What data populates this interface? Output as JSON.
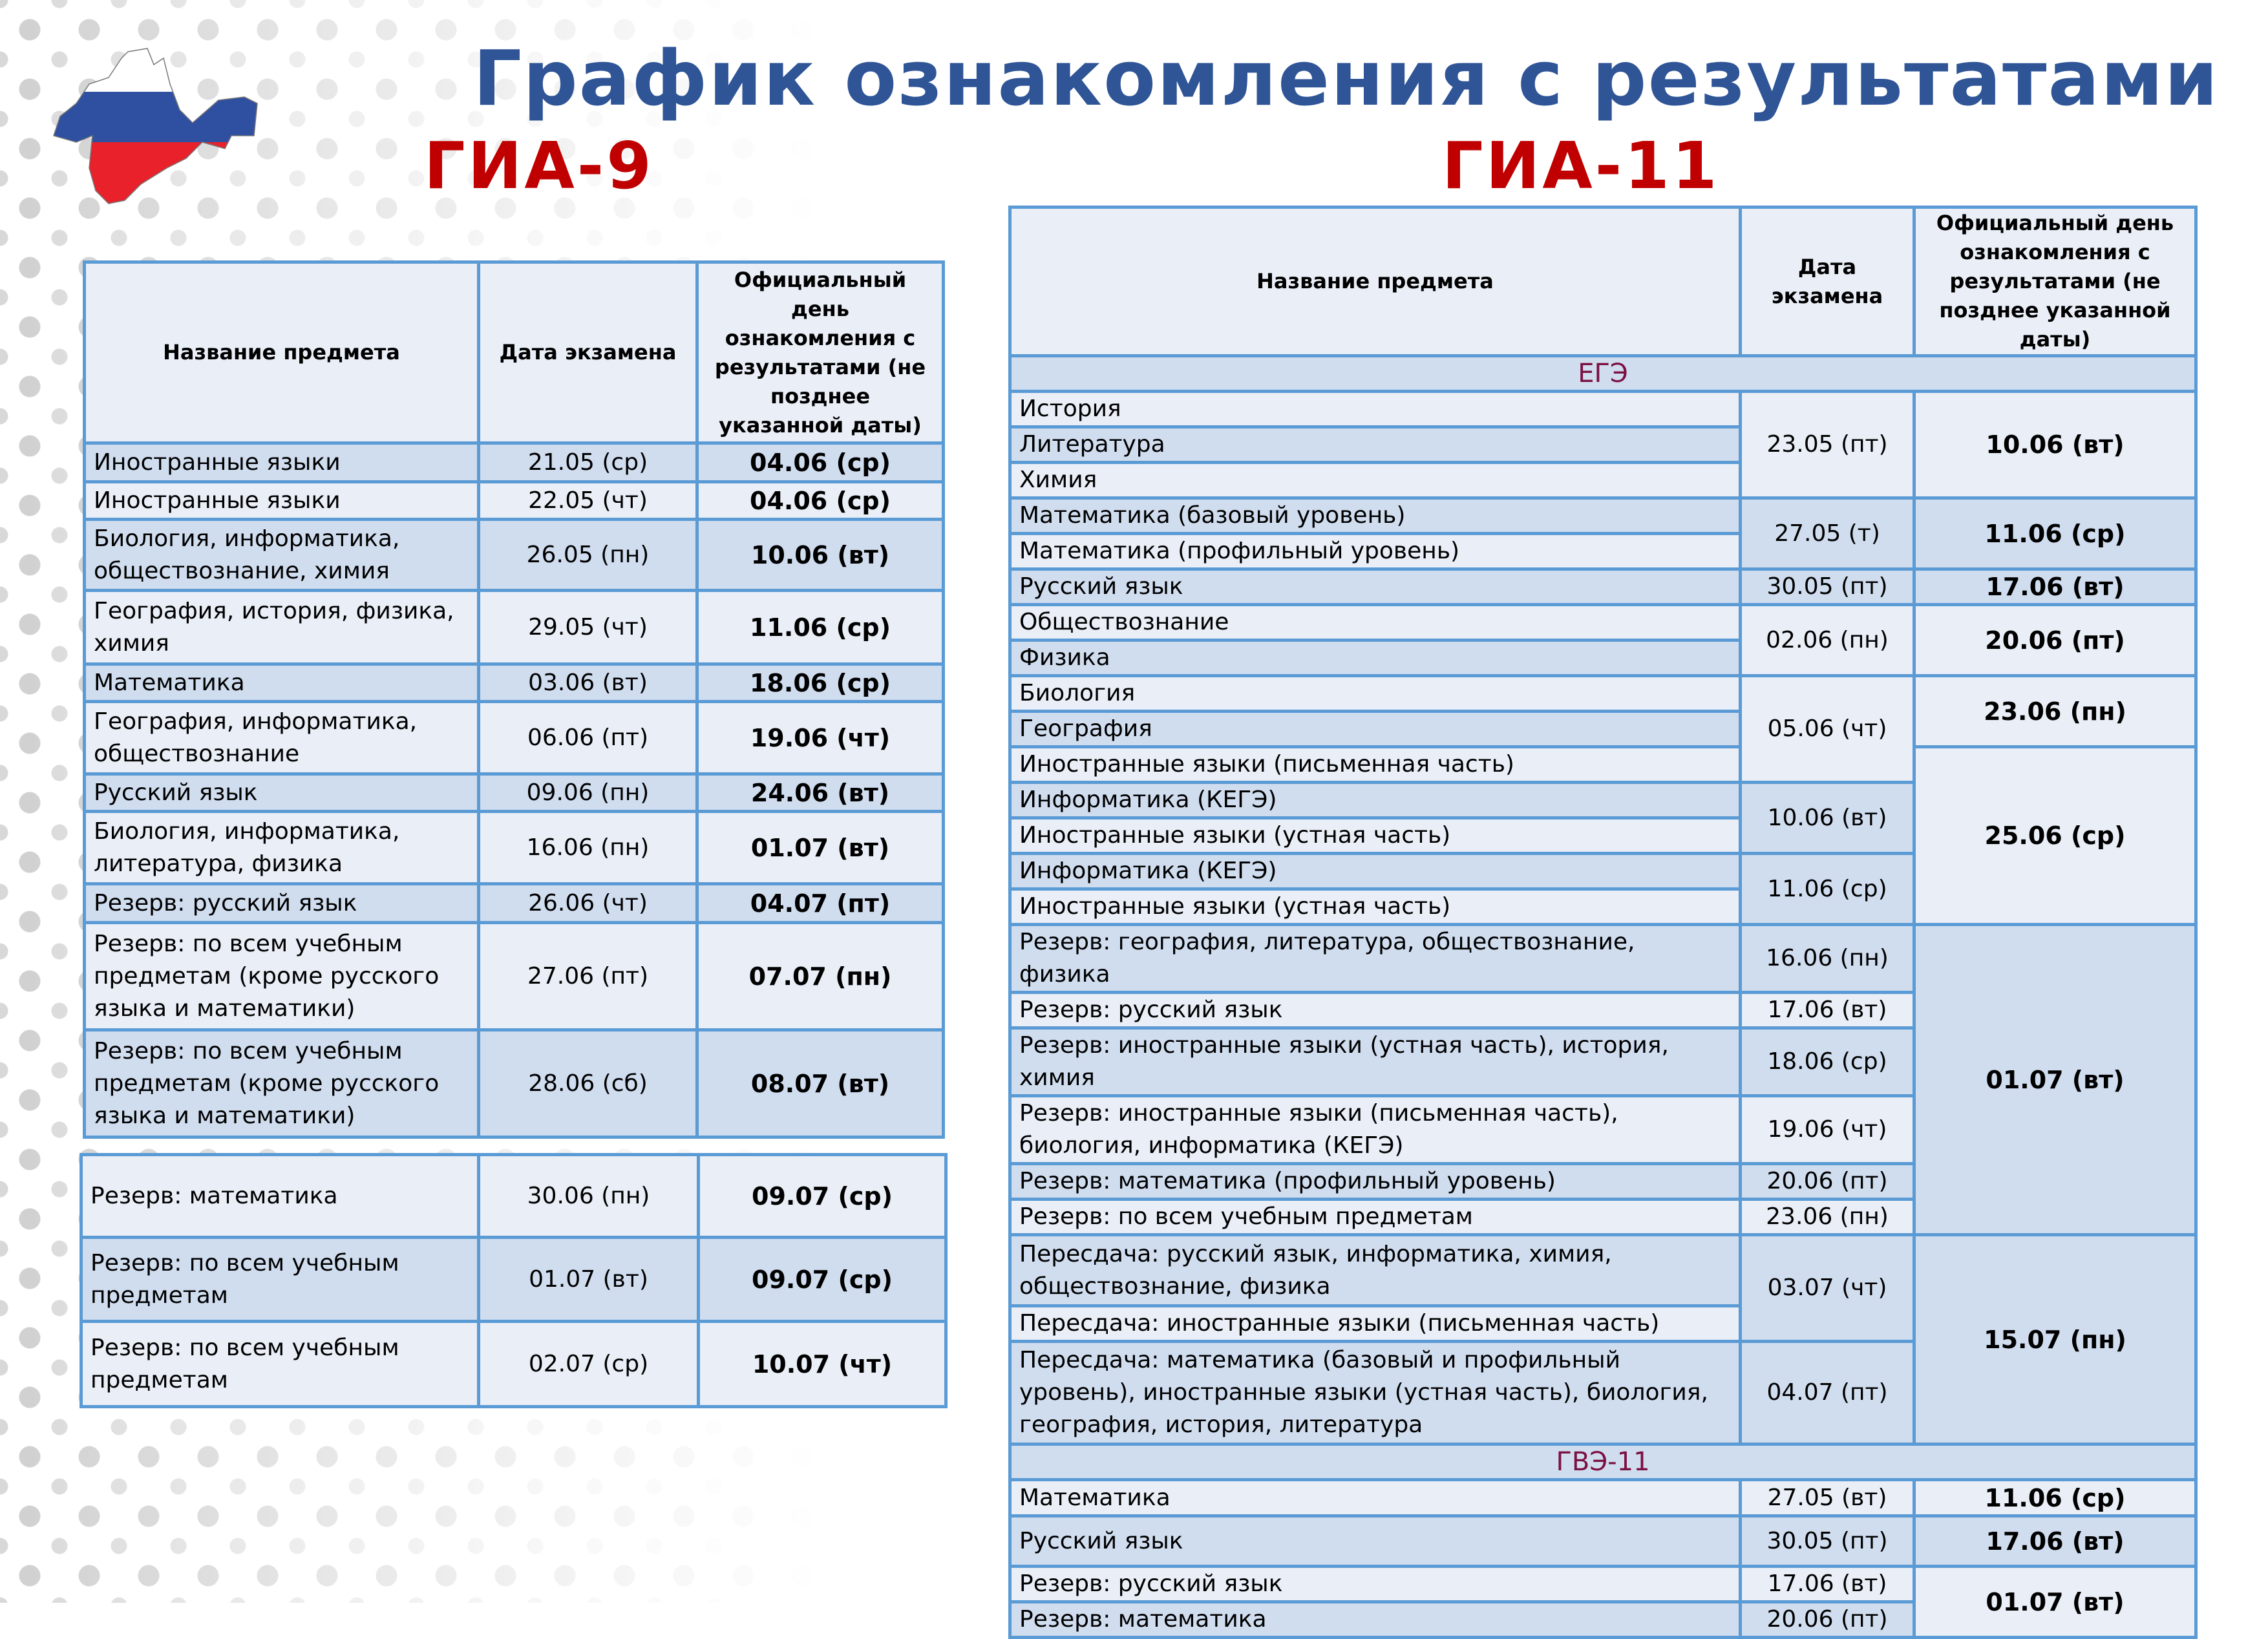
{
  "title": "График ознакомления с результатами",
  "colors": {
    "title": "#2f5597",
    "subtitle": "#c00000",
    "border": "#5b9bd5",
    "row_light": "#e9eef7",
    "row_dark": "#d0ddef",
    "band_text": "#7b1042"
  },
  "logo": "crimea-map-russian-flag",
  "gia9": {
    "label": "ГИА-9",
    "header": [
      "Название предмета",
      "Дата экзамена",
      "Официальный день ознакомления с результатами (не позднее указанной даты)"
    ],
    "rows": [
      [
        "Иностранные языки",
        "21.05 (ср)",
        "04.06 (ср)"
      ],
      [
        "Иностранные языки",
        "22.05 (чт)",
        "04.06 (ср)"
      ],
      [
        "Биология, информатика, обществознание, химия",
        "26.05 (пн)",
        "10.06 (вт)"
      ],
      [
        " География, история, физика, химия",
        "29.05 (чт)",
        "11.06 (ср)"
      ],
      [
        "Математика",
        "03.06 (вт)",
        "18.06 (ср)"
      ],
      [
        "География, информатика, обществознание",
        "06.06 (пт)",
        "19.06 (чт)"
      ],
      [
        "Русский язык",
        "09.06 (пн)",
        "24.06 (вт)"
      ],
      [
        "Биология, информатика, литература, физика",
        "16.06 (пн)",
        "01.07 (вт)"
      ],
      [
        "Резерв: русский язык",
        "26.06 (чт)",
        "04.07 (пт)"
      ],
      [
        "Резерв: по всем учебным предметам (кроме русского языка и математики)",
        "27.06 (пт)",
        "07.07 (пн)"
      ],
      [
        "Резерв: по всем учебным предметам (кроме русского языка и математики)",
        "28.06 (сб)",
        "08.07 (вт)"
      ]
    ],
    "rows2": [
      [
        "Резерв: математика",
        "30.06 (пн)",
        "09.07 (ср)"
      ],
      [
        "Резерв: по всем учебным предметам",
        "01.07 (вт)",
        "09.07 (ср)"
      ],
      [
        "Резерв: по всем учебным предметам",
        "02.07 (ср)",
        "10.07 (чт)"
      ]
    ]
  },
  "gia11": {
    "label": "ГИА-11",
    "header": [
      "Название предмета",
      "Дата экзамена",
      "Официальный день ознакомления с результатами (не позднее указанной даты)"
    ],
    "ege_label": "ЕГЭ",
    "ege_rows": [
      {
        "name": "История",
        "date": "23.05 (пт)",
        "date_rows": 3,
        "official": "10.06 (вт)",
        "official_rows": 3
      },
      {
        "name": "Литература"
      },
      {
        "name": "Химия"
      },
      {
        "name": "Математика (базовый уровень)",
        "date": "27.05 (т)",
        "date_rows": 2,
        "official": "11.06 (ср)",
        "official_rows": 2
      },
      {
        "name": "Математика (профильный уровень)"
      },
      {
        "name": "Русский язык",
        "date": "30.05 (пт)",
        "date_rows": 1,
        "official": "17.06 (вт)",
        "official_rows": 1
      },
      {
        "name": "Обществознание",
        "date": "02.06 (пн)",
        "date_rows": 2,
        "official": "20.06 (пт)",
        "official_rows": 2
      },
      {
        "name": "Физика"
      },
      {
        "name": "Биология",
        "date": "05.06 (чт)",
        "date_rows": 3,
        "official": "23.06 (пн)",
        "official_rows": 2
      },
      {
        "name": "География"
      },
      {
        "name": "Иностранные языки (письменная часть)",
        "official": "25.06 (ср)",
        "official_rows": 5
      },
      {
        "name": "Информатика (КЕГЭ)",
        "date": "10.06 (вт)",
        "date_rows": 2
      },
      {
        "name": "Иностранные языки (устная часть)"
      },
      {
        "name": "Информатика (КЕГЭ)",
        "date": "11.06 (ср)",
        "date_rows": 2
      },
      {
        "name": "Иностранные языки (устная часть)"
      },
      {
        "name": "Резерв: география, литература, обществознание, физика",
        "date": "16.06 (пн)",
        "date_rows": 1,
        "official": "01.07 (вт)",
        "official_rows": 6
      },
      {
        "name": "Резерв: русский язык",
        "date": "17.06 (вт)",
        "date_rows": 1
      },
      {
        "name": "Резерв: иностранные языки (устная часть), история, химия",
        "date": "18.06 (ср)",
        "date_rows": 1
      },
      {
        "name": "Резерв: иностранные языки (письменная часть), биология, информатика (КЕГЭ)",
        "date": "19.06 (чт)",
        "date_rows": 1
      },
      {
        "name": "Резерв: математика (профильный уровень)",
        "date": "20.06 (пт)",
        "date_rows": 1
      },
      {
        "name": "Резерв: по всем учебным предметам",
        "date": "23.06 (пн)",
        "date_rows": 1
      },
      {
        "name": "Пересдача: русский язык, информатика, химия, обществознание, физика",
        "date": "03.07 (чт)",
        "date_rows": 2,
        "official": "15.07 (пн)",
        "official_rows": 3
      },
      {
        "name": "Пересдача: иностранные языки (письменная часть)"
      },
      {
        "name": "Пересдача: математика (базовый и профильный уровень), иностранные языки (устная часть), биология, география, история, литература",
        "date": "04.07 (пт)",
        "date_rows": 1
      }
    ],
    "gve_label": "ГВЭ-11",
    "gve_rows": [
      {
        "name": "Математика",
        "date": "27.05 (вт)",
        "date_rows": 1,
        "official": "11.06 (ср)",
        "official_rows": 1
      },
      {
        "name": "Русский язык",
        "date": "30.05 (пт)",
        "date_rows": 1,
        "official": "17.06 (вт)",
        "official_rows": 1
      },
      {
        "name": "Резерв: русский язык",
        "date": "17.06 (вт)",
        "date_rows": 1,
        "official": "01.07 (вт)",
        "official_rows": 2
      },
      {
        "name": "Резерв: математика",
        "date": "20.06 (пт)",
        "date_rows": 1
      }
    ]
  }
}
